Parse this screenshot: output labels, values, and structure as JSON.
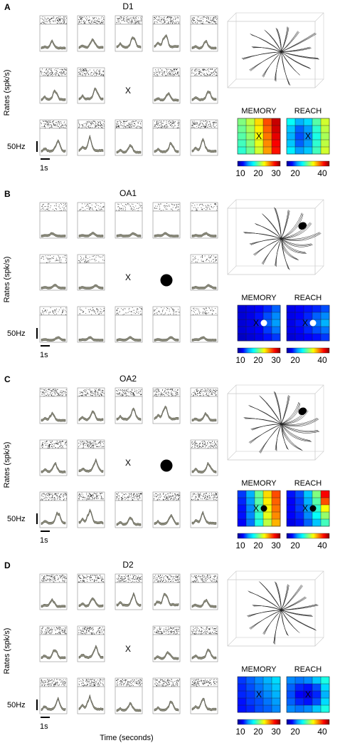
{
  "figure": {
    "ylabel": "Rates (spk/s)",
    "xlabel": "Time (seconds)",
    "scale_rate": "50Hz",
    "scale_time": "1s",
    "map_titles": [
      "MEMORY",
      "REACH"
    ],
    "center_marker": "X",
    "colormap": {
      "stops": [
        "#00008f",
        "#0000ff",
        "#00a0ff",
        "#00ffff",
        "#80ff80",
        "#ffff00",
        "#ff8000",
        "#ff0000",
        "#800000"
      ]
    },
    "colors": {
      "raster": "#111111",
      "trace_fill": "#8a8a7a",
      "trace_edge": "#4f4f45",
      "box": "#8a8a8a"
    }
  },
  "panels": [
    {
      "letter": "A",
      "title": "D1",
      "obstacle": false,
      "show_scale": true,
      "memory_ticks": [
        "10",
        "20",
        "30"
      ],
      "reach_ticks": [
        "20",
        "40"
      ],
      "memory_map": [
        [
          0.5,
          0.56,
          0.66,
          0.8,
          0.93
        ],
        [
          0.48,
          0.54,
          0.64,
          0.78,
          0.92
        ],
        [
          0.46,
          0.52,
          0.62,
          0.76,
          0.9
        ],
        [
          0.44,
          0.5,
          0.6,
          0.74,
          0.88
        ],
        [
          0.42,
          0.48,
          0.58,
          0.72,
          0.86
        ]
      ],
      "reach_map": [
        [
          0.38,
          0.3,
          0.34,
          0.46,
          0.58
        ],
        [
          0.32,
          0.22,
          0.28,
          0.42,
          0.56
        ],
        [
          0.3,
          0.2,
          0.26,
          0.4,
          0.54
        ],
        [
          0.32,
          0.22,
          0.28,
          0.42,
          0.56
        ],
        [
          0.36,
          0.28,
          0.32,
          0.44,
          0.58
        ]
      ]
    },
    {
      "letter": "B",
      "title": "OA1",
      "obstacle": true,
      "show_scale": true,
      "memory_ticks": [
        "10",
        "20",
        "30"
      ],
      "reach_ticks": [
        "20",
        "40"
      ],
      "memory_map": [
        [
          0.08,
          0.1,
          0.12,
          0.16,
          0.22
        ],
        [
          0.08,
          0.1,
          0.14,
          0.2,
          0.26
        ],
        [
          0.08,
          0.1,
          0.14,
          0.22,
          0.28
        ],
        [
          0.08,
          0.1,
          0.12,
          0.18,
          0.24
        ],
        [
          0.06,
          0.08,
          0.1,
          0.14,
          0.18
        ]
      ],
      "reach_map": [
        [
          0.1,
          0.12,
          0.14,
          0.16,
          0.2
        ],
        [
          0.1,
          0.12,
          0.16,
          0.22,
          0.26
        ],
        [
          0.1,
          0.14,
          0.18,
          0.24,
          0.3
        ],
        [
          0.1,
          0.12,
          0.16,
          0.2,
          0.24
        ],
        [
          0.08,
          0.1,
          0.12,
          0.14,
          0.18
        ]
      ]
    },
    {
      "letter": "C",
      "title": "OA2",
      "obstacle": true,
      "show_scale": true,
      "memory_ticks": [
        "10",
        "20",
        "30"
      ],
      "reach_ticks": [
        "20",
        "40"
      ],
      "memory_map": [
        [
          0.18,
          0.3,
          0.48,
          0.66,
          0.8
        ],
        [
          0.16,
          0.28,
          0.46,
          0.64,
          0.78
        ],
        [
          0.14,
          0.26,
          0.44,
          0.62,
          0.76
        ],
        [
          0.14,
          0.26,
          0.42,
          0.6,
          0.74
        ],
        [
          0.12,
          0.24,
          0.4,
          0.56,
          0.7
        ]
      ],
      "reach_map": [
        [
          0.14,
          0.2,
          0.32,
          0.5,
          0.88
        ],
        [
          0.12,
          0.18,
          0.3,
          0.46,
          0.8
        ],
        [
          0.12,
          0.18,
          0.28,
          0.42,
          0.62
        ],
        [
          0.12,
          0.16,
          0.26,
          0.38,
          0.52
        ],
        [
          0.1,
          0.14,
          0.22,
          0.32,
          0.44
        ]
      ]
    },
    {
      "letter": "D",
      "title": "D2",
      "obstacle": false,
      "show_scale": true,
      "memory_ticks": [
        "10",
        "20",
        "30"
      ],
      "reach_ticks": [
        "20",
        "40"
      ],
      "memory_map": [
        [
          0.18,
          0.22,
          0.26,
          0.3,
          0.34
        ],
        [
          0.16,
          0.2,
          0.24,
          0.28,
          0.32
        ],
        [
          0.16,
          0.18,
          0.22,
          0.26,
          0.3
        ],
        [
          0.14,
          0.18,
          0.2,
          0.24,
          0.28
        ],
        [
          0.14,
          0.16,
          0.2,
          0.22,
          0.26
        ]
      ],
      "reach_map": [
        [
          0.26,
          0.24,
          0.26,
          0.32,
          0.4
        ],
        [
          0.22,
          0.16,
          0.14,
          0.2,
          0.34
        ],
        [
          0.2,
          0.12,
          0.1,
          0.16,
          0.3
        ],
        [
          0.22,
          0.16,
          0.14,
          0.2,
          0.34
        ],
        [
          0.26,
          0.24,
          0.26,
          0.32,
          0.4
        ]
      ]
    }
  ]
}
